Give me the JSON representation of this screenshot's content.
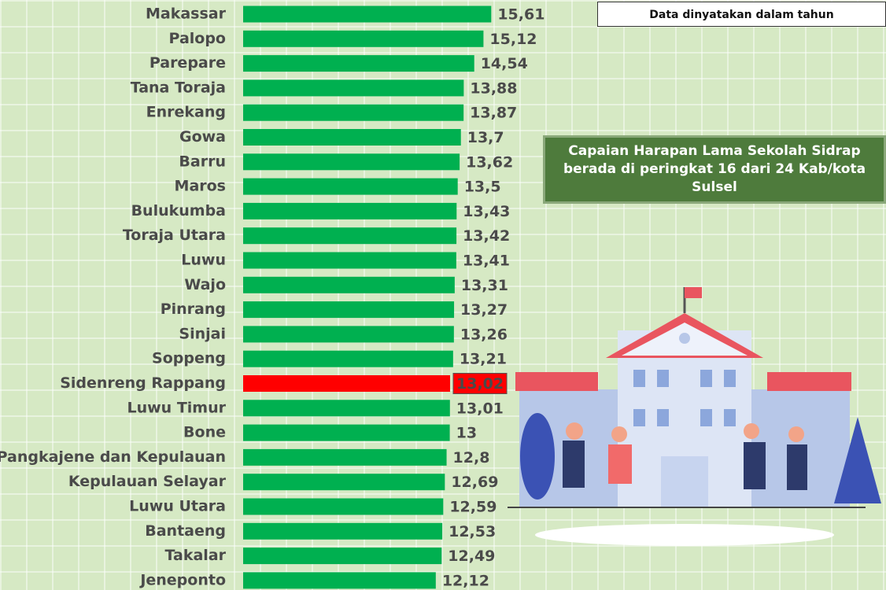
{
  "chart_data": {
    "type": "bar",
    "orientation": "horizontal",
    "categories": [
      "Makassar",
      "Palopo",
      "Parepare",
      "Tana Toraja",
      "Enrekang",
      "Gowa",
      "Barru",
      "Maros",
      "Bulukumba",
      "Toraja Utara",
      "Luwu",
      "Wajo",
      "Pinrang",
      "Sinjai",
      "Soppeng",
      "Sidenreng Rappang",
      "Luwu Timur",
      "Bone",
      "Pangkajene dan Kepulauan",
      "Kepulauan Selayar",
      "Luwu Utara",
      "Bantaeng",
      "Takalar",
      "Jeneponto"
    ],
    "values": [
      15.61,
      15.12,
      14.54,
      13.88,
      13.87,
      13.7,
      13.62,
      13.5,
      13.43,
      13.42,
      13.41,
      13.31,
      13.27,
      13.26,
      13.21,
      13.02,
      13.01,
      13,
      12.8,
      12.69,
      12.59,
      12.53,
      12.49,
      12.12
    ],
    "value_labels": [
      "15,61",
      "15,12",
      "14,54",
      "13,88",
      "13,87",
      "13,7",
      "13,62",
      "13,5",
      "13,43",
      "13,42",
      "13,41",
      "13,31",
      "13,27",
      "13,26",
      "13,21",
      "13,02",
      "13,01",
      "13",
      "12,8",
      "12,69",
      "12,59",
      "12,53",
      "12,49",
      "12,12"
    ],
    "colors": [
      "#00b050",
      "#00b050",
      "#00b050",
      "#00b050",
      "#00b050",
      "#00b050",
      "#00b050",
      "#00b050",
      "#00b050",
      "#00b050",
      "#00b050",
      "#00b050",
      "#00b050",
      "#00b050",
      "#00b050",
      "#ff0000",
      "#00b050",
      "#00b050",
      "#00b050",
      "#00b050",
      "#00b050",
      "#00b050",
      "#00b050",
      "#00b050"
    ],
    "note": "Data dinyatakan dalam tahun",
    "annotation": "Capaian Harapan Lama Sekolah Sidrap berada di peringkat 16 dari 24 Kab/kota Sulsel"
  }
}
